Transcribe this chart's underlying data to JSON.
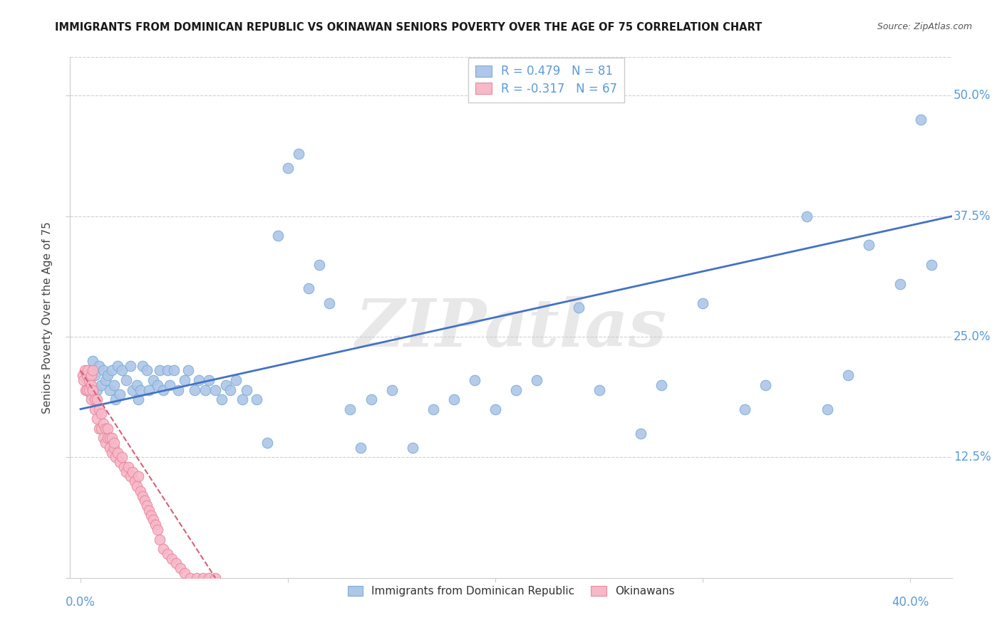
{
  "title": "IMMIGRANTS FROM DOMINICAN REPUBLIC VS OKINAWAN SENIORS POVERTY OVER THE AGE OF 75 CORRELATION CHART",
  "source": "Source: ZipAtlas.com",
  "ylabel": "Seniors Poverty Over the Age of 75",
  "ylim": [
    0.0,
    0.54
  ],
  "xlim": [
    -0.005,
    0.42
  ],
  "legend_blue_r": "R = 0.479",
  "legend_blue_n": "N = 81",
  "legend_pink_r": "R = -0.317",
  "legend_pink_n": "N = 67",
  "blue_color": "#aec6e8",
  "blue_edge_color": "#7bafd4",
  "pink_color": "#f7b8c8",
  "pink_edge_color": "#e88aa0",
  "blue_line_color": "#4472c4",
  "pink_line_color": "#d4607a",
  "watermark": "ZIPatlas",
  "grid_color": "#d0d0d0",
  "spine_color": "#cccccc",
  "tick_color": "#5b9bd5",
  "ytick_positions": [
    0.0,
    0.125,
    0.25,
    0.375,
    0.5
  ],
  "ytick_labels": [
    "",
    "12.5%",
    "25.0%",
    "37.5%",
    "50.0%"
  ],
  "xtick_left_label": "0.0%",
  "xtick_right_label": "40.0%",
  "blue_x": [
    0.003,
    0.004,
    0.005,
    0.006,
    0.007,
    0.008,
    0.009,
    0.01,
    0.011,
    0.012,
    0.013,
    0.014,
    0.015,
    0.016,
    0.017,
    0.018,
    0.019,
    0.02,
    0.022,
    0.024,
    0.025,
    0.027,
    0.028,
    0.029,
    0.03,
    0.032,
    0.033,
    0.035,
    0.037,
    0.038,
    0.04,
    0.042,
    0.043,
    0.045,
    0.047,
    0.05,
    0.052,
    0.055,
    0.057,
    0.06,
    0.062,
    0.065,
    0.068,
    0.07,
    0.072,
    0.075,
    0.078,
    0.08,
    0.085,
    0.09,
    0.095,
    0.1,
    0.105,
    0.11,
    0.115,
    0.12,
    0.13,
    0.135,
    0.14,
    0.15,
    0.16,
    0.17,
    0.18,
    0.19,
    0.2,
    0.21,
    0.22,
    0.24,
    0.25,
    0.27,
    0.28,
    0.3,
    0.32,
    0.33,
    0.35,
    0.36,
    0.37,
    0.38,
    0.395,
    0.405,
    0.41
  ],
  "blue_y": [
    0.205,
    0.215,
    0.19,
    0.225,
    0.21,
    0.195,
    0.22,
    0.2,
    0.215,
    0.205,
    0.21,
    0.195,
    0.215,
    0.2,
    0.185,
    0.22,
    0.19,
    0.215,
    0.205,
    0.22,
    0.195,
    0.2,
    0.185,
    0.195,
    0.22,
    0.215,
    0.195,
    0.205,
    0.2,
    0.215,
    0.195,
    0.215,
    0.2,
    0.215,
    0.195,
    0.205,
    0.215,
    0.195,
    0.205,
    0.195,
    0.205,
    0.195,
    0.185,
    0.2,
    0.195,
    0.205,
    0.185,
    0.195,
    0.185,
    0.14,
    0.355,
    0.425,
    0.44,
    0.3,
    0.325,
    0.285,
    0.175,
    0.135,
    0.185,
    0.195,
    0.135,
    0.175,
    0.185,
    0.205,
    0.175,
    0.195,
    0.205,
    0.28,
    0.195,
    0.15,
    0.2,
    0.285,
    0.175,
    0.2,
    0.375,
    0.175,
    0.21,
    0.345,
    0.305,
    0.475,
    0.325
  ],
  "pink_x": [
    0.001,
    0.0015,
    0.002,
    0.0025,
    0.003,
    0.003,
    0.0035,
    0.004,
    0.004,
    0.005,
    0.005,
    0.005,
    0.006,
    0.006,
    0.007,
    0.007,
    0.008,
    0.008,
    0.009,
    0.009,
    0.01,
    0.01,
    0.011,
    0.011,
    0.012,
    0.012,
    0.013,
    0.013,
    0.014,
    0.014,
    0.015,
    0.015,
    0.016,
    0.016,
    0.017,
    0.018,
    0.019,
    0.02,
    0.021,
    0.022,
    0.023,
    0.024,
    0.025,
    0.026,
    0.027,
    0.028,
    0.029,
    0.03,
    0.031,
    0.032,
    0.033,
    0.034,
    0.035,
    0.036,
    0.037,
    0.038,
    0.04,
    0.042,
    0.044,
    0.046,
    0.048,
    0.05,
    0.053,
    0.056,
    0.059,
    0.062,
    0.065
  ],
  "pink_y": [
    0.21,
    0.205,
    0.215,
    0.195,
    0.21,
    0.195,
    0.215,
    0.205,
    0.195,
    0.21,
    0.2,
    0.185,
    0.195,
    0.215,
    0.185,
    0.175,
    0.165,
    0.185,
    0.175,
    0.155,
    0.17,
    0.155,
    0.16,
    0.145,
    0.155,
    0.14,
    0.145,
    0.155,
    0.135,
    0.145,
    0.145,
    0.13,
    0.135,
    0.14,
    0.125,
    0.13,
    0.12,
    0.125,
    0.115,
    0.11,
    0.115,
    0.105,
    0.11,
    0.1,
    0.095,
    0.105,
    0.09,
    0.085,
    0.08,
    0.075,
    0.07,
    0.065,
    0.06,
    0.055,
    0.05,
    0.04,
    0.03,
    0.025,
    0.02,
    0.015,
    0.01,
    0.005,
    0.0,
    0.0,
    0.0,
    0.0,
    0.0
  ],
  "blue_line_x0": 0.0,
  "blue_line_x1": 0.42,
  "blue_line_y0": 0.175,
  "blue_line_y1": 0.375,
  "pink_line_x0": 0.0,
  "pink_line_x1": 0.065,
  "pink_line_y0": 0.215,
  "pink_line_y1": 0.0
}
